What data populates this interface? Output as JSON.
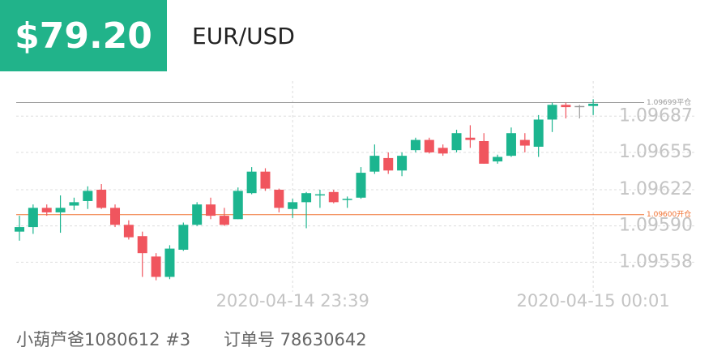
{
  "header": {
    "amount": "$79.20",
    "symbol": "EUR/USD"
  },
  "chart_data": {
    "type": "candlestick",
    "categories": [
      null,
      null,
      null,
      null,
      null,
      null,
      null,
      null,
      null,
      null,
      null,
      null,
      null,
      null,
      null,
      null,
      null,
      null,
      null,
      null,
      "2020-04-14 23:39",
      null,
      null,
      null,
      null,
      null,
      null,
      null,
      null,
      null,
      null,
      null,
      null,
      null,
      null,
      null,
      null,
      null,
      null,
      null,
      null,
      null,
      "2020-04-15 00:01"
    ],
    "open": [
      1.09585,
      1.09589,
      1.09606,
      1.09602,
      1.09608,
      1.09612,
      1.09622,
      1.09606,
      1.09591,
      1.09581,
      1.09563,
      1.09545,
      1.09569,
      1.09591,
      1.09609,
      1.09599,
      1.09596,
      1.09619,
      1.09638,
      1.09622,
      1.09605,
      1.09611,
      1.09617,
      1.0962,
      1.09613,
      1.09615,
      1.09638,
      1.0965,
      1.09639,
      1.09657,
      1.09666,
      1.09659,
      1.09657,
      1.09668,
      1.09665,
      1.09647,
      1.09652,
      1.09666,
      1.0966,
      1.09684,
      1.09697,
      1.09696,
      1.09696
    ],
    "high": [
      1.09599,
      1.09609,
      1.09609,
      1.09617,
      1.09615,
      1.09625,
      1.09627,
      1.09609,
      1.09595,
      1.09585,
      1.09566,
      1.09573,
      1.09593,
      1.09611,
      1.09615,
      1.09606,
      1.09624,
      1.09642,
      1.09641,
      1.09623,
      1.09614,
      1.0962,
      1.09622,
      1.09622,
      1.09616,
      1.09642,
      1.09662,
      1.09655,
      1.09655,
      1.09668,
      1.09668,
      1.09662,
      1.09675,
      1.09679,
      1.09672,
      1.09653,
      1.09677,
      1.09672,
      1.09688,
      1.09699,
      1.09699,
      1.09697,
      1.09702
    ],
    "low": [
      1.09577,
      1.09583,
      1.09599,
      1.09584,
      1.09604,
      1.09605,
      1.09605,
      1.09589,
      1.09578,
      1.09545,
      1.09542,
      1.09543,
      1.09568,
      1.0959,
      1.09596,
      1.0959,
      1.09596,
      1.09618,
      1.09621,
      1.09602,
      1.09597,
      1.09588,
      1.09606,
      1.0961,
      1.09606,
      1.09614,
      1.09636,
      1.09636,
      1.09634,
      1.09655,
      1.09654,
      1.09652,
      1.09655,
      1.09659,
      1.09645,
      1.09645,
      1.09651,
      1.09655,
      1.09651,
      1.09673,
      1.09685,
      1.09685,
      1.09688
    ],
    "close": [
      1.09589,
      1.09606,
      1.09602,
      1.09606,
      1.09611,
      1.09621,
      1.09606,
      1.09591,
      1.0958,
      1.09566,
      1.09545,
      1.0957,
      1.09591,
      1.09609,
      1.09599,
      1.09591,
      1.09621,
      1.09638,
      1.09623,
      1.09606,
      1.09611,
      1.09619,
      1.09618,
      1.09611,
      1.09614,
      1.09637,
      1.09652,
      1.09639,
      1.09652,
      1.09666,
      1.09655,
      1.09654,
      1.09672,
      1.09666,
      1.09645,
      1.09651,
      1.09672,
      1.09661,
      1.09684,
      1.09697,
      1.09695,
      1.09696,
      1.09698
    ],
    "up_color": "#1cb58f",
    "down_color": "#f0555e",
    "flat_color": "#999999",
    "ylim": [
      1.09521,
      1.09718
    ],
    "yticks": [
      1.09558,
      {
        "value": 1.0959,
        "label": "1.09590"
      },
      1.09622,
      1.09655,
      1.09687
    ],
    "grid": true,
    "ref_lines": [
      {
        "value": 1.09699,
        "label": "1.09699平仓",
        "color": "#999999"
      },
      {
        "value": 1.096,
        "label": "1.09600开仓",
        "color": "#f07030"
      }
    ]
  },
  "footer": {
    "user": "小葫芦爸1080612 #3",
    "order": "订单号 78630642"
  }
}
